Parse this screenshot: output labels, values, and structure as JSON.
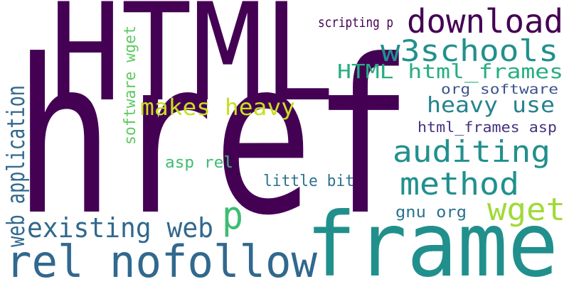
{
  "words": [
    {
      "text": "href",
      "color": "#440154"
    },
    {
      "text": "HTML",
      "color": "#440154"
    },
    {
      "text": "frame",
      "color": "#21908d"
    },
    {
      "text": "rel nofollow",
      "color": "#31688e"
    },
    {
      "text": "download",
      "color": "#440154"
    },
    {
      "text": "w3schools",
      "color": "#21908d"
    },
    {
      "text": "HTML html_frames",
      "color": "#27ad81"
    },
    {
      "text": "existing web",
      "color": "#31688e"
    },
    {
      "text": "web application",
      "color": "#31688e"
    },
    {
      "text": "auditing",
      "color": "#21908d"
    },
    {
      "text": "method",
      "color": "#21908d"
    },
    {
      "text": "wget",
      "color": "#a0da39"
    },
    {
      "text": "p",
      "color": "#3fbc73"
    },
    {
      "text": "makes heavy",
      "color": "#c8e020"
    },
    {
      "text": "heavy use",
      "color": "#26828e"
    },
    {
      "text": "org software",
      "color": "#3b528b"
    },
    {
      "text": "software wget",
      "color": "#5ec962"
    },
    {
      "text": "html_frames asp",
      "color": "#46327e"
    },
    {
      "text": "scripting p",
      "color": "#440154"
    },
    {
      "text": "asp rel",
      "color": "#3fbc73"
    },
    {
      "text": "little bit",
      "color": "#2c728e"
    },
    {
      "text": "gnu org",
      "color": "#2c728e"
    }
  ]
}
